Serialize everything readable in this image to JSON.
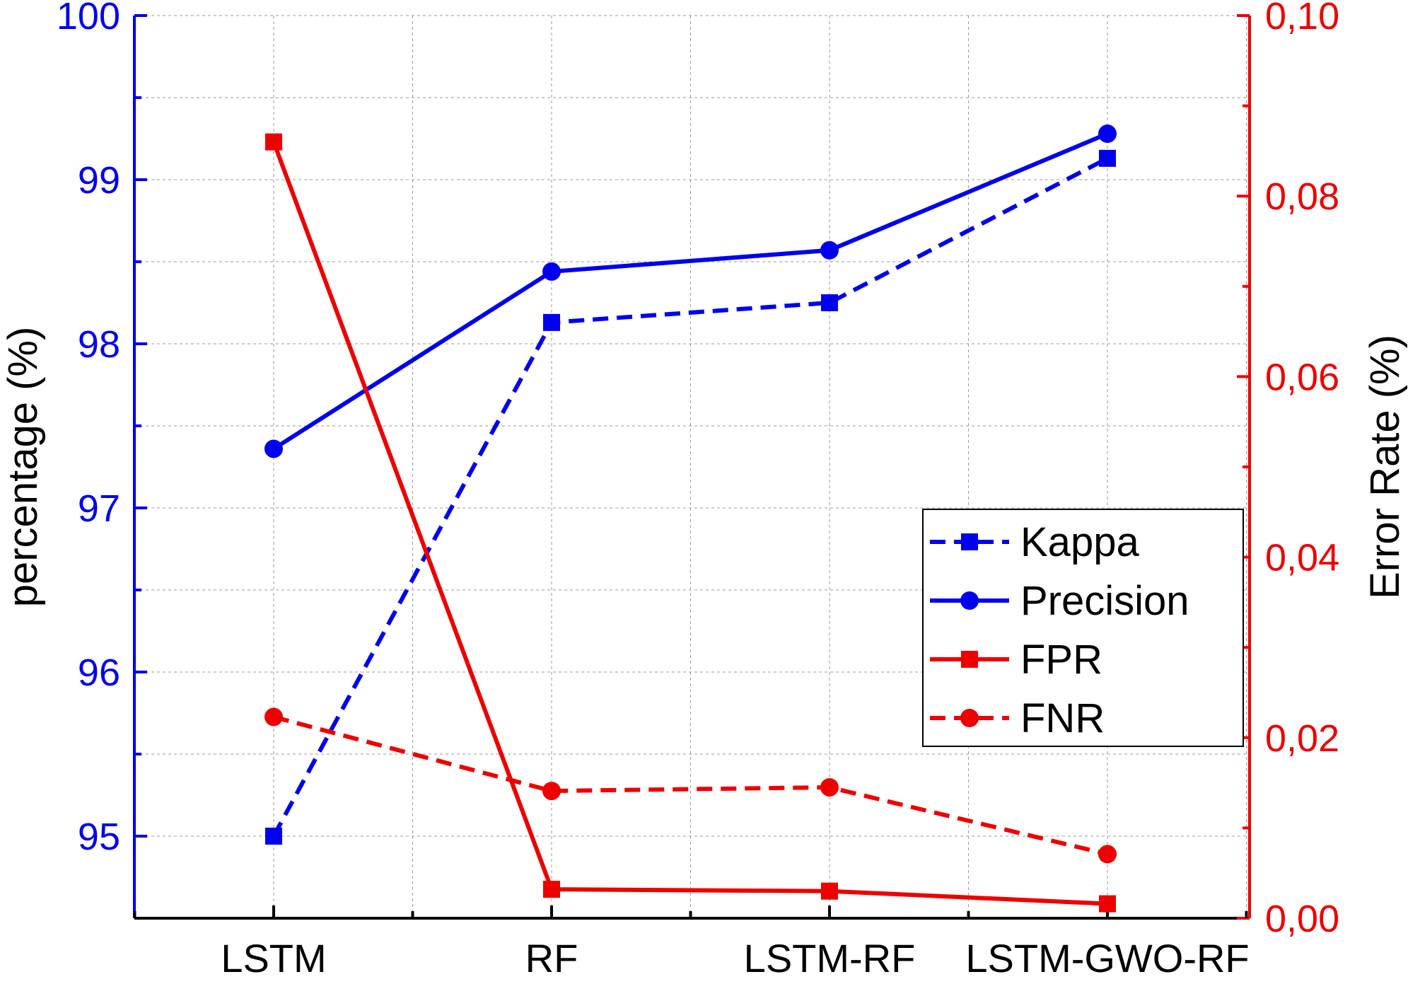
{
  "chart_data": {
    "type": "line",
    "categories": [
      "LSTM",
      "RF",
      "LSTM-RF",
      "LSTM-GWO-RF"
    ],
    "y_left": {
      "label": "percentage (%)",
      "range": [
        94.5,
        100
      ],
      "ticks": [
        95,
        96,
        97,
        98,
        99,
        100
      ],
      "tick_labels": [
        "95",
        "96",
        "97",
        "98",
        "99",
        "100"
      ],
      "color": "#0000ee"
    },
    "y_right": {
      "label": "Error Rate (%)",
      "range": [
        0,
        0.1
      ],
      "ticks": [
        0,
        0.02,
        0.04,
        0.06,
        0.08,
        0.1
      ],
      "tick_labels": [
        "0,00",
        "0,02",
        "0,04",
        "0,06",
        "0,08",
        "0,10"
      ],
      "color": "#ee0000"
    },
    "grid": true,
    "legend_position": "right-middle",
    "series": [
      {
        "name": "Kappa",
        "axis": "left",
        "color": "#0000ee",
        "dashed": true,
        "marker": "square",
        "values": [
          95.0,
          98.13,
          98.25,
          99.13
        ]
      },
      {
        "name": "Precision",
        "axis": "left",
        "color": "#0000ee",
        "dashed": false,
        "marker": "circle",
        "values": [
          97.36,
          98.44,
          98.57,
          99.28
        ]
      },
      {
        "name": "FPR",
        "axis": "right",
        "color": "#ee0000",
        "dashed": false,
        "marker": "square",
        "values": [
          0.086,
          0.0032,
          0.003,
          0.0016
        ]
      },
      {
        "name": "FNR",
        "axis": "right",
        "color": "#ee0000",
        "dashed": true,
        "marker": "circle",
        "values": [
          0.0223,
          0.0141,
          0.0145,
          0.0071
        ]
      }
    ]
  }
}
